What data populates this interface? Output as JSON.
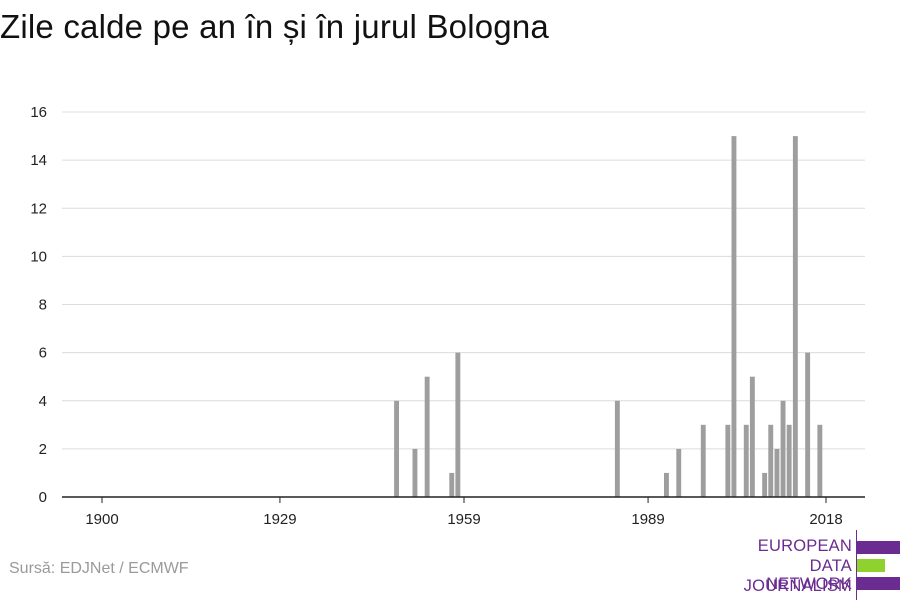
{
  "chart_data": {
    "type": "bar",
    "title": "Zile calde pe an în și în jurul Bologna",
    "xlabel": "",
    "ylabel": "",
    "ylim": [
      0,
      16
    ],
    "xlim": [
      1898,
      2025
    ],
    "yticks": [
      0,
      2,
      4,
      6,
      8,
      10,
      12,
      14,
      16
    ],
    "xticks": [
      1900,
      1929,
      1959,
      1989,
      2018
    ],
    "grid": true,
    "bar_color": "#9e9e9e",
    "x": [
      1948,
      1951,
      1953,
      1957,
      1958,
      1984,
      1992,
      1994,
      1998,
      2002,
      2003,
      2005,
      2006,
      2008,
      2009,
      2010,
      2011,
      2012,
      2013,
      2015,
      2017,
      2018
    ],
    "values": [
      4,
      2,
      5,
      1,
      6,
      4,
      1,
      2,
      3,
      3,
      15,
      3,
      5,
      1,
      3,
      2,
      4,
      3,
      15,
      6,
      3,
      0
    ]
  },
  "source": "Sursă: EDJNet / ECMWF",
  "logo": {
    "lines": [
      "EUROPEAN",
      "DATA JOURNALISM",
      "NETWORK"
    ],
    "colors": {
      "purple": "#6b2c91",
      "green": "#8fd22d"
    }
  }
}
